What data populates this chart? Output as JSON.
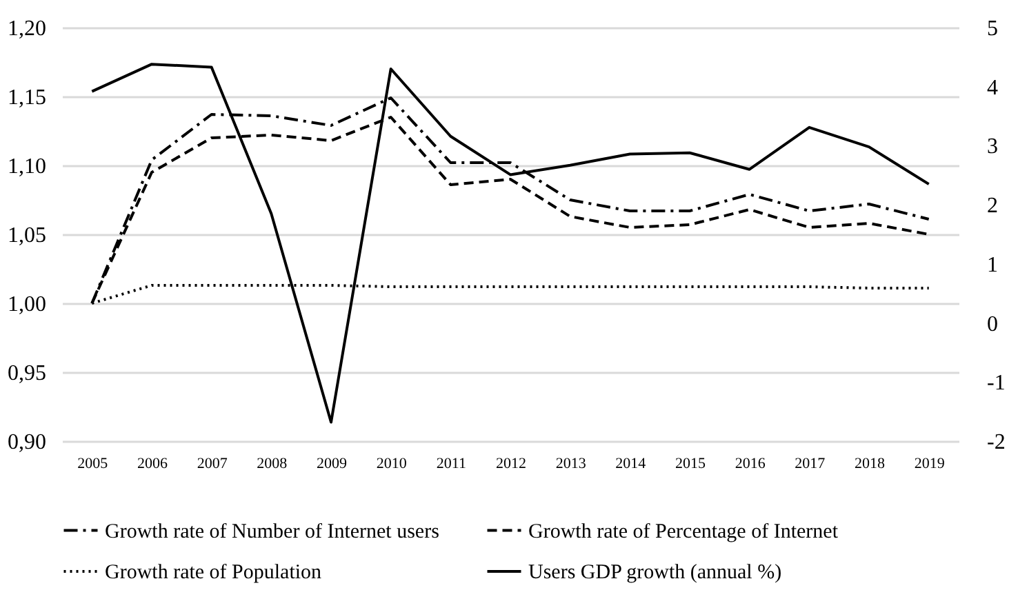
{
  "chart_data": {
    "type": "line",
    "categories": [
      "2005",
      "2006",
      "2007",
      "2008",
      "2009",
      "2010",
      "2011",
      "2012",
      "2013",
      "2014",
      "2015",
      "2016",
      "2017",
      "2018",
      "2019"
    ],
    "series": [
      {
        "name": "Growth rate of Number of Internet users",
        "color": "#000000",
        "line_style": "dashdot",
        "values": [
          1.0,
          1.104,
          1.137,
          1.136,
          1.129,
          1.149,
          1.102,
          1.102,
          1.075,
          1.067,
          1.067,
          1.079,
          1.067,
          1.072,
          1.061
        ]
      },
      {
        "name": "Growth rate of Percentage of Internet",
        "color": "#000000",
        "line_style": "dashed",
        "values": [
          1.0,
          1.095,
          1.12,
          1.122,
          1.118,
          1.135,
          1.086,
          1.09,
          1.063,
          1.055,
          1.057,
          1.068,
          1.055,
          1.058,
          1.05
        ]
      },
      {
        "name": "Growth rate of Population",
        "color": "#000000",
        "line_style": "dotted",
        "values": [
          1.0,
          1.013,
          1.013,
          1.013,
          1.013,
          1.012,
          1.012,
          1.012,
          1.012,
          1.012,
          1.012,
          1.012,
          1.012,
          1.011,
          1.011
        ]
      },
      {
        "name": "Users GDP growth (annual %)",
        "color": "#000000",
        "line_style": "solid",
        "axis": "y2",
        "values": [
          3.92,
          4.38,
          4.33,
          1.85,
          -1.68,
          4.3,
          3.16,
          2.51,
          2.67,
          2.86,
          2.88,
          2.6,
          3.31,
          2.98,
          2.35
        ]
      }
    ],
    "ylim": [
      0.9,
      1.2
    ],
    "yticks": [
      {
        "value": 0.9,
        "label": "0,90"
      },
      {
        "value": 0.95,
        "label": "0,95"
      },
      {
        "value": 1.0,
        "label": "1,00"
      },
      {
        "value": 1.05,
        "label": "1,05"
      },
      {
        "value": 1.1,
        "label": "1,10"
      },
      {
        "value": 1.15,
        "label": "1,15"
      },
      {
        "value": 1.2,
        "label": "1,20"
      }
    ],
    "y2lim": [
      -2,
      5
    ],
    "y2ticks": [
      -2,
      -1,
      0,
      1,
      2,
      3,
      4,
      5
    ],
    "grid": "y",
    "legend": "bottom",
    "marker": "none"
  }
}
